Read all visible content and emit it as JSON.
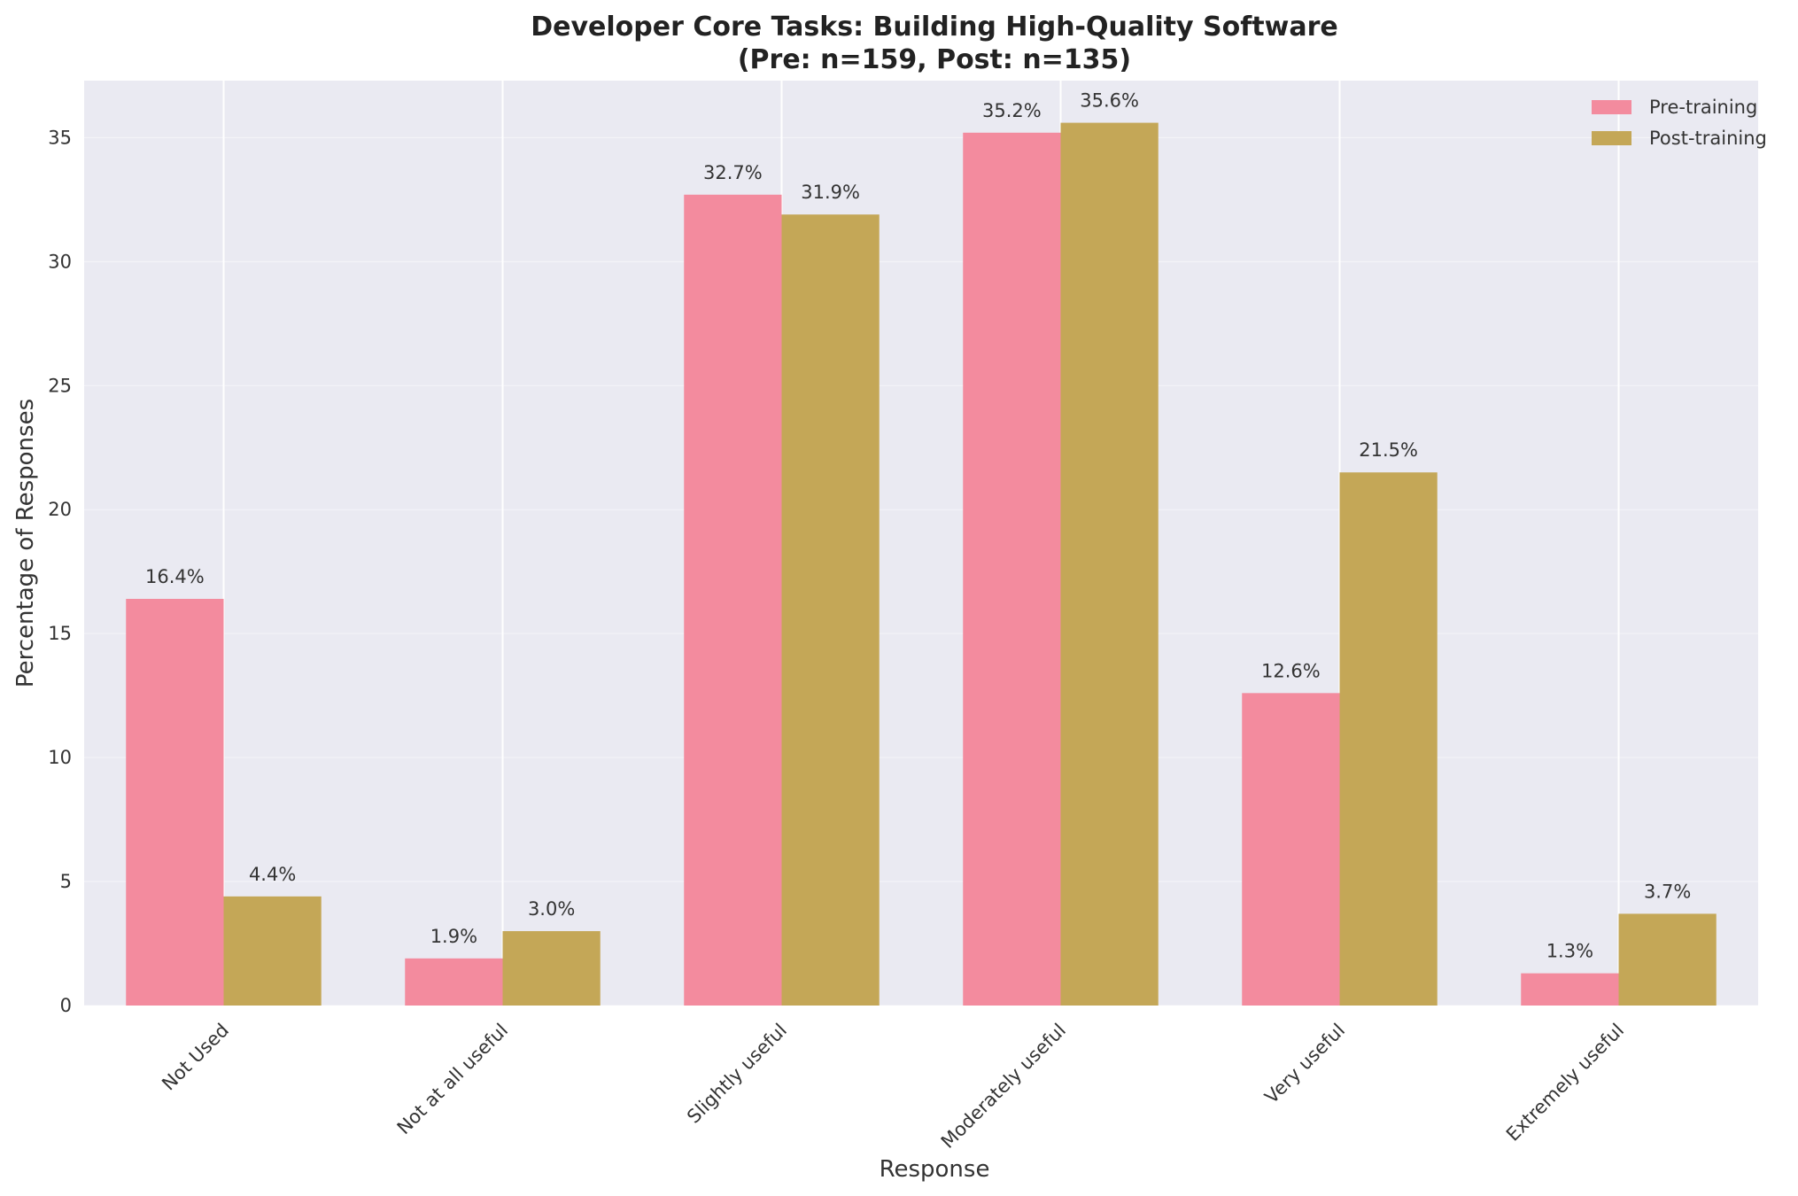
{
  "chart_data": {
    "type": "bar",
    "title": "Developer Core Tasks: Building High-Quality Software",
    "subtitle": "(Pre: n=159, Post: n=135)",
    "xlabel": "Response",
    "ylabel": "Percentage of Responses",
    "categories": [
      "Not Used",
      "Not at all useful",
      "Slightly useful",
      "Moderately useful",
      "Very useful",
      "Extremely useful"
    ],
    "series": [
      {
        "name": "Pre-training",
        "color": "#f38b9e",
        "values": [
          16.4,
          1.9,
          32.7,
          35.2,
          12.6,
          1.3
        ],
        "labels": [
          "16.4%",
          "1.9%",
          "32.7%",
          "35.2%",
          "12.6%",
          "1.3%"
        ]
      },
      {
        "name": "Post-training",
        "color": "#c4a757",
        "values": [
          4.4,
          3.0,
          31.9,
          35.6,
          21.5,
          3.7
        ],
        "labels": [
          "4.4%",
          "3.0%",
          "31.9%",
          "35.6%",
          "21.5%",
          "3.7%"
        ]
      }
    ],
    "ylim": [
      0,
      37.3
    ],
    "yticks": [
      0,
      5,
      10,
      15,
      20,
      25,
      30,
      35
    ],
    "grid": true,
    "legend_position": "top-right",
    "background_color": "#eaeaf2",
    "grid_color": "#ffffff"
  }
}
